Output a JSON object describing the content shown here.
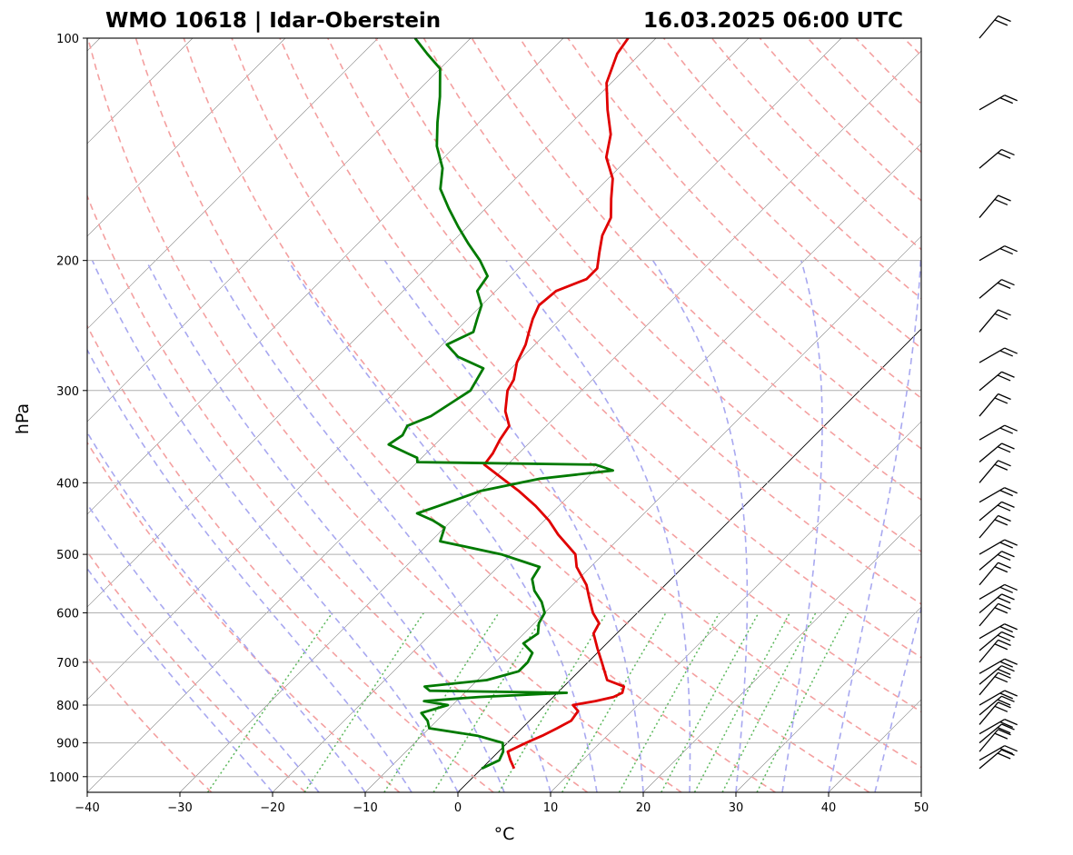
{
  "chart_data": {
    "type": "line",
    "title_left": "WMO 10618 | Idar-Oberstein",
    "title_right": "16.03.2025 06:00 UTC",
    "xlabel": "°C",
    "ylabel": "hPa",
    "xlim": [
      -40,
      50
    ],
    "ylim": [
      1050,
      100
    ],
    "y_scale": "log",
    "skew": "skew-T",
    "grid": true,
    "xticks": [
      -40,
      -30,
      -20,
      -10,
      0,
      10,
      20,
      30,
      40,
      50
    ],
    "yticks": [
      100,
      200,
      300,
      400,
      500,
      600,
      700,
      800,
      900,
      1000
    ],
    "colors": {
      "temperature": "#e00000",
      "dewpoint": "#007a00",
      "dry_adiabats": "#f4a0a0",
      "moist_adiabats": "#a8a8f0",
      "mixing_ratio": "#5cb85c",
      "isotherms": "#808080",
      "zero_isotherm": "#000000"
    },
    "series": [
      {
        "key": "temperature",
        "p": [
          975,
          950,
          925,
          900,
          880,
          860,
          840,
          815,
          800,
          790,
          780,
          770,
          755,
          740,
          700,
          670,
          640,
          620,
          600,
          570,
          550,
          520,
          500,
          470,
          450,
          430,
          410,
          395,
          378,
          365,
          350,
          335,
          320,
          300,
          290,
          275,
          260,
          250,
          240,
          230,
          220,
          212,
          205,
          195,
          185,
          175,
          165,
          155,
          145,
          135,
          125,
          115,
          105,
          100
        ],
        "t": [
          3.5,
          2.2,
          1.0,
          2.0,
          3.0,
          3.8,
          4.5,
          4.2,
          3.0,
          5.0,
          6.5,
          7.0,
          6.5,
          4.0,
          1.5,
          -0.5,
          -2.5,
          -3.0,
          -4.8,
          -7.0,
          -8.5,
          -11.5,
          -13.0,
          -17.0,
          -19.5,
          -22.5,
          -26.0,
          -29.0,
          -32.5,
          -32.8,
          -33.5,
          -34.0,
          -36.0,
          -38.0,
          -38.5,
          -40.0,
          -41.0,
          -42.0,
          -43.0,
          -43.8,
          -43.5,
          -41.5,
          -41.5,
          -43.0,
          -44.5,
          -45.5,
          -47.5,
          -49.5,
          -52.5,
          -54.5,
          -57.5,
          -60.5,
          -62.5,
          -63.0
        ]
      },
      {
        "key": "dewpoint",
        "p": [
          975,
          950,
          925,
          900,
          880,
          860,
          840,
          820,
          800,
          790,
          780,
          770,
          765,
          755,
          740,
          720,
          700,
          680,
          660,
          640,
          620,
          600,
          580,
          560,
          540,
          520,
          500,
          480,
          460,
          450,
          440,
          430,
          420,
          410,
          395,
          385,
          378,
          375,
          370,
          365,
          355,
          345,
          335,
          325,
          300,
          280,
          270,
          260,
          250,
          240,
          230,
          220,
          210,
          200,
          190,
          180,
          170,
          160,
          150,
          140,
          130,
          120,
          110,
          105,
          100
        ],
        "t": [
          0.0,
          1.0,
          0.5,
          -0.5,
          -4.0,
          -10.0,
          -11.0,
          -12.5,
          -10.5,
          -13.5,
          -8.0,
          1.0,
          -14.0,
          -15.0,
          -9.0,
          -6.5,
          -6.5,
          -7.0,
          -9.0,
          -8.5,
          -9.5,
          -10.0,
          -11.5,
          -13.5,
          -15.0,
          -15.5,
          -21.0,
          -29.0,
          -30.0,
          -32.0,
          -34.5,
          -33.0,
          -31.5,
          -30.0,
          -25.0,
          -18.0,
          -20.5,
          -40.0,
          -40.5,
          -42.0,
          -45.0,
          -44.5,
          -45.0,
          -43.5,
          -42.0,
          -43.0,
          -47.0,
          -49.5,
          -48.0,
          -49.0,
          -50.0,
          -52.0,
          -52.5,
          -55.0,
          -58.0,
          -61.0,
          -64.0,
          -67.0,
          -69.0,
          -72.0,
          -74.5,
          -77.0,
          -80.0,
          -83.0,
          -86.0
        ]
      }
    ],
    "wind_barbs": [
      {
        "p": 975
      },
      {
        "p": 950
      },
      {
        "p": 925
      },
      {
        "p": 900
      },
      {
        "p": 875
      },
      {
        "p": 850
      },
      {
        "p": 825
      },
      {
        "p": 800
      },
      {
        "p": 775
      },
      {
        "p": 750
      },
      {
        "p": 725
      },
      {
        "p": 700
      },
      {
        "p": 675
      },
      {
        "p": 650
      },
      {
        "p": 625
      },
      {
        "p": 600
      },
      {
        "p": 575
      },
      {
        "p": 550
      },
      {
        "p": 525
      },
      {
        "p": 500
      },
      {
        "p": 475
      },
      {
        "p": 450
      },
      {
        "p": 425
      },
      {
        "p": 400
      },
      {
        "p": 375
      },
      {
        "p": 350
      },
      {
        "p": 325
      },
      {
        "p": 300
      },
      {
        "p": 275
      },
      {
        "p": 250
      },
      {
        "p": 225
      },
      {
        "p": 200
      },
      {
        "p": 175
      },
      {
        "p": 150
      },
      {
        "p": 125
      },
      {
        "p": 100
      }
    ]
  }
}
